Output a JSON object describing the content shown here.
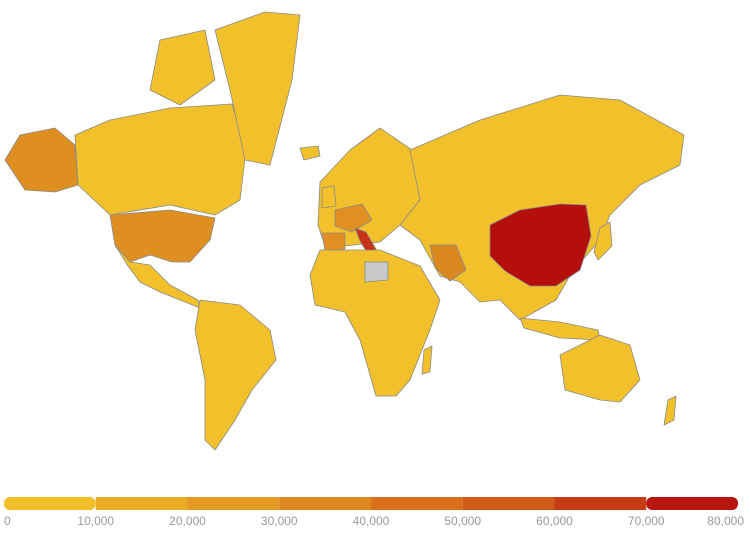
{
  "legend": {
    "colors": [
      "#f1c02b",
      "#eaac27",
      "#e59a24",
      "#df8720",
      "#d8701c",
      "#d05a18",
      "#c73b14",
      "#b8150f"
    ],
    "ticks": [
      0,
      {
        "value": 10000,
        "label": "10,000"
      },
      {
        "value": 20000,
        "label": "20,000"
      },
      {
        "value": 30000,
        "label": "30,000"
      },
      {
        "value": 40000,
        "label": "40,000"
      },
      {
        "value": 50000,
        "label": "50,000"
      },
      {
        "value": 60000,
        "label": "60,000"
      },
      {
        "value": 70000,
        "label": "70,000"
      },
      {
        "value": 80000,
        "label": "80,000"
      }
    ]
  }
}
